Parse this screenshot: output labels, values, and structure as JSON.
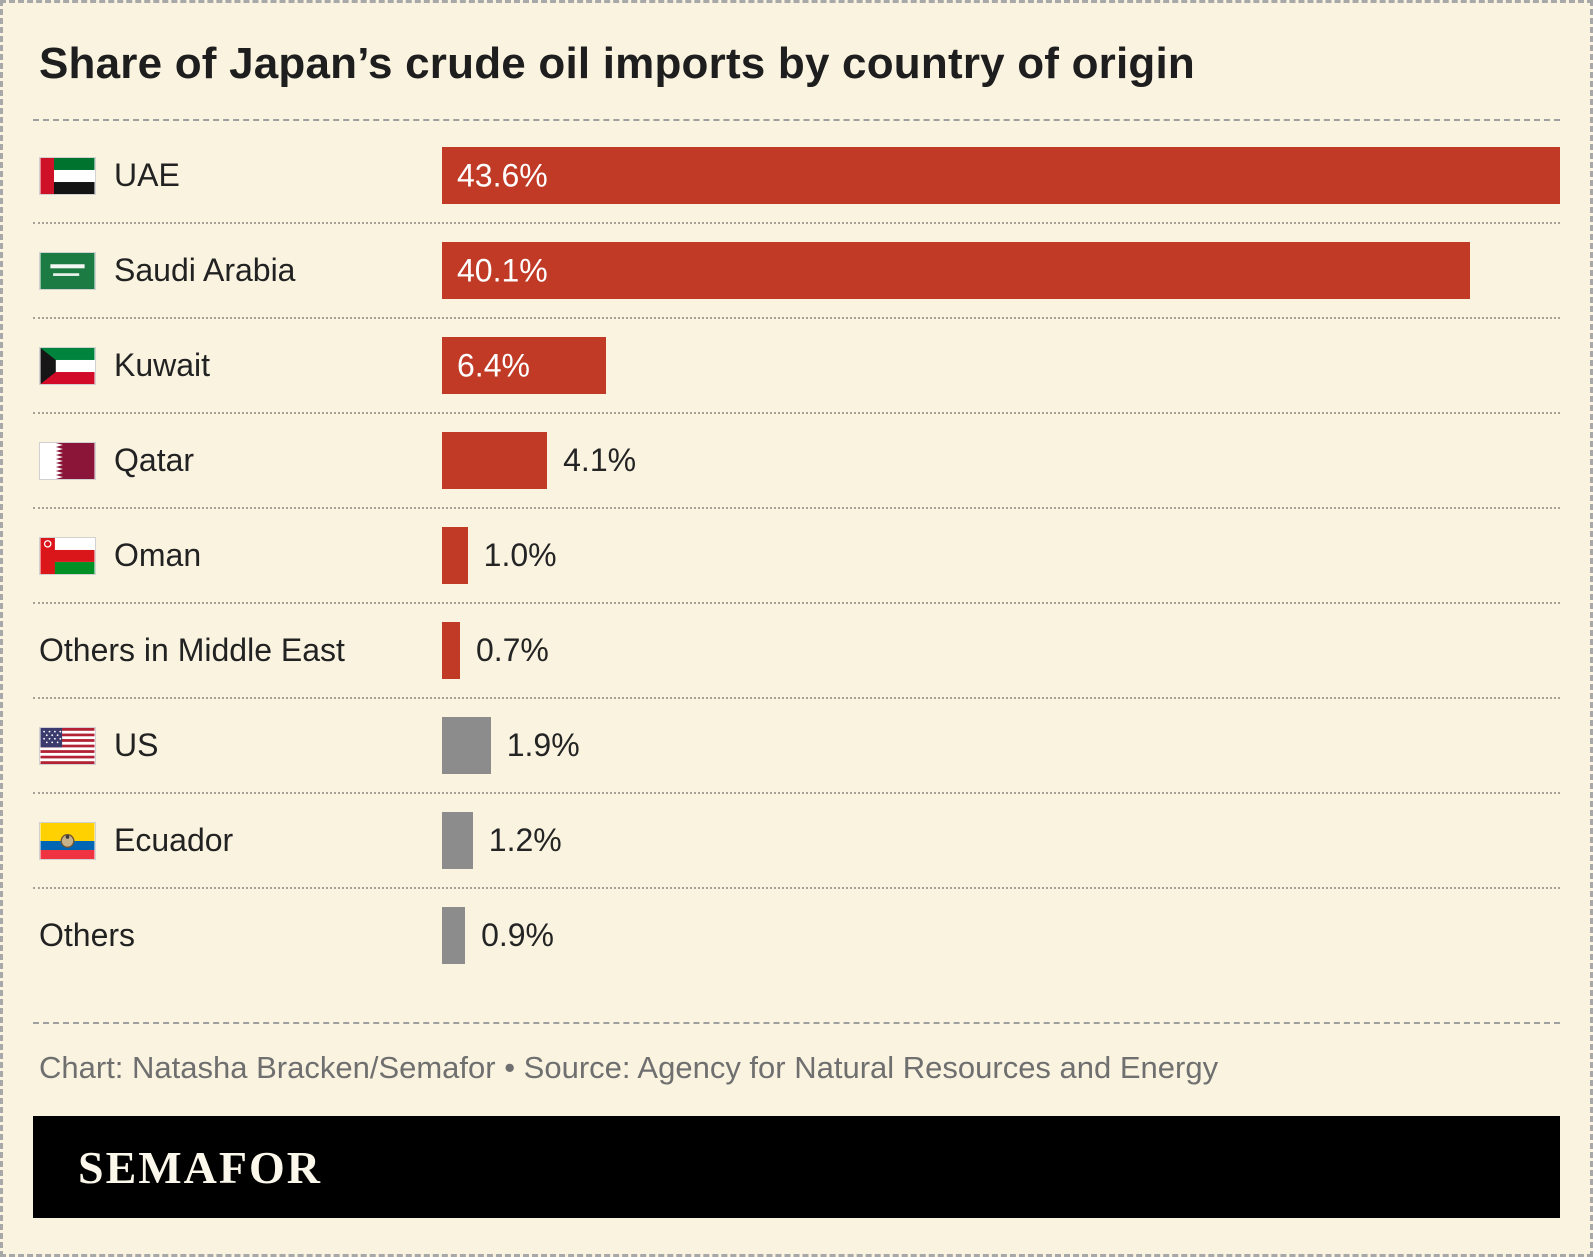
{
  "title": "Share of Japan’s crude oil imports by country of origin",
  "footer": {
    "credit": "Chart: Natasha Bracken/Semafor • Source: Agency for Natural Resources and Energy",
    "logo_text": "SEMAFOR"
  },
  "colors": {
    "highlight": "#c13a26",
    "neutral": "#8c8c8c",
    "background": "#f9f3e0",
    "bar_label_inside": "#ffffff",
    "bar_label_outside": "#242424"
  },
  "chart_data": {
    "type": "bar",
    "orientation": "horizontal",
    "title": "Share of Japan’s crude oil imports by country of origin",
    "value_suffix": "%",
    "x_max": 43.6,
    "grid": false,
    "legend": false,
    "categories": [
      "UAE",
      "Saudi Arabia",
      "Kuwait",
      "Qatar",
      "Oman",
      "Others in Middle East",
      "US",
      "Ecuador",
      "Others"
    ],
    "values": [
      43.6,
      40.1,
      6.4,
      4.1,
      1.0,
      0.7,
      1.9,
      1.2,
      0.9
    ],
    "rows": [
      {
        "label": "UAE",
        "value": 43.6,
        "display": "43.6%",
        "flag": "uae",
        "color": "highlight"
      },
      {
        "label": "Saudi Arabia",
        "value": 40.1,
        "display": "40.1%",
        "flag": "saudi-arabia",
        "color": "highlight"
      },
      {
        "label": "Kuwait",
        "value": 6.4,
        "display": "6.4%",
        "flag": "kuwait",
        "color": "highlight"
      },
      {
        "label": "Qatar",
        "value": 4.1,
        "display": "4.1%",
        "flag": "qatar",
        "color": "highlight"
      },
      {
        "label": "Oman",
        "value": 1.0,
        "display": "1.0%",
        "flag": "oman",
        "color": "highlight"
      },
      {
        "label": "Others in Middle East",
        "value": 0.7,
        "display": "0.7%",
        "flag": null,
        "color": "highlight"
      },
      {
        "label": "US",
        "value": 1.9,
        "display": "1.9%",
        "flag": "us",
        "color": "neutral"
      },
      {
        "label": "Ecuador",
        "value": 1.2,
        "display": "1.2%",
        "flag": "ecuador",
        "color": "neutral"
      },
      {
        "label": "Others",
        "value": 0.9,
        "display": "0.9%",
        "flag": null,
        "color": "neutral"
      }
    ]
  }
}
